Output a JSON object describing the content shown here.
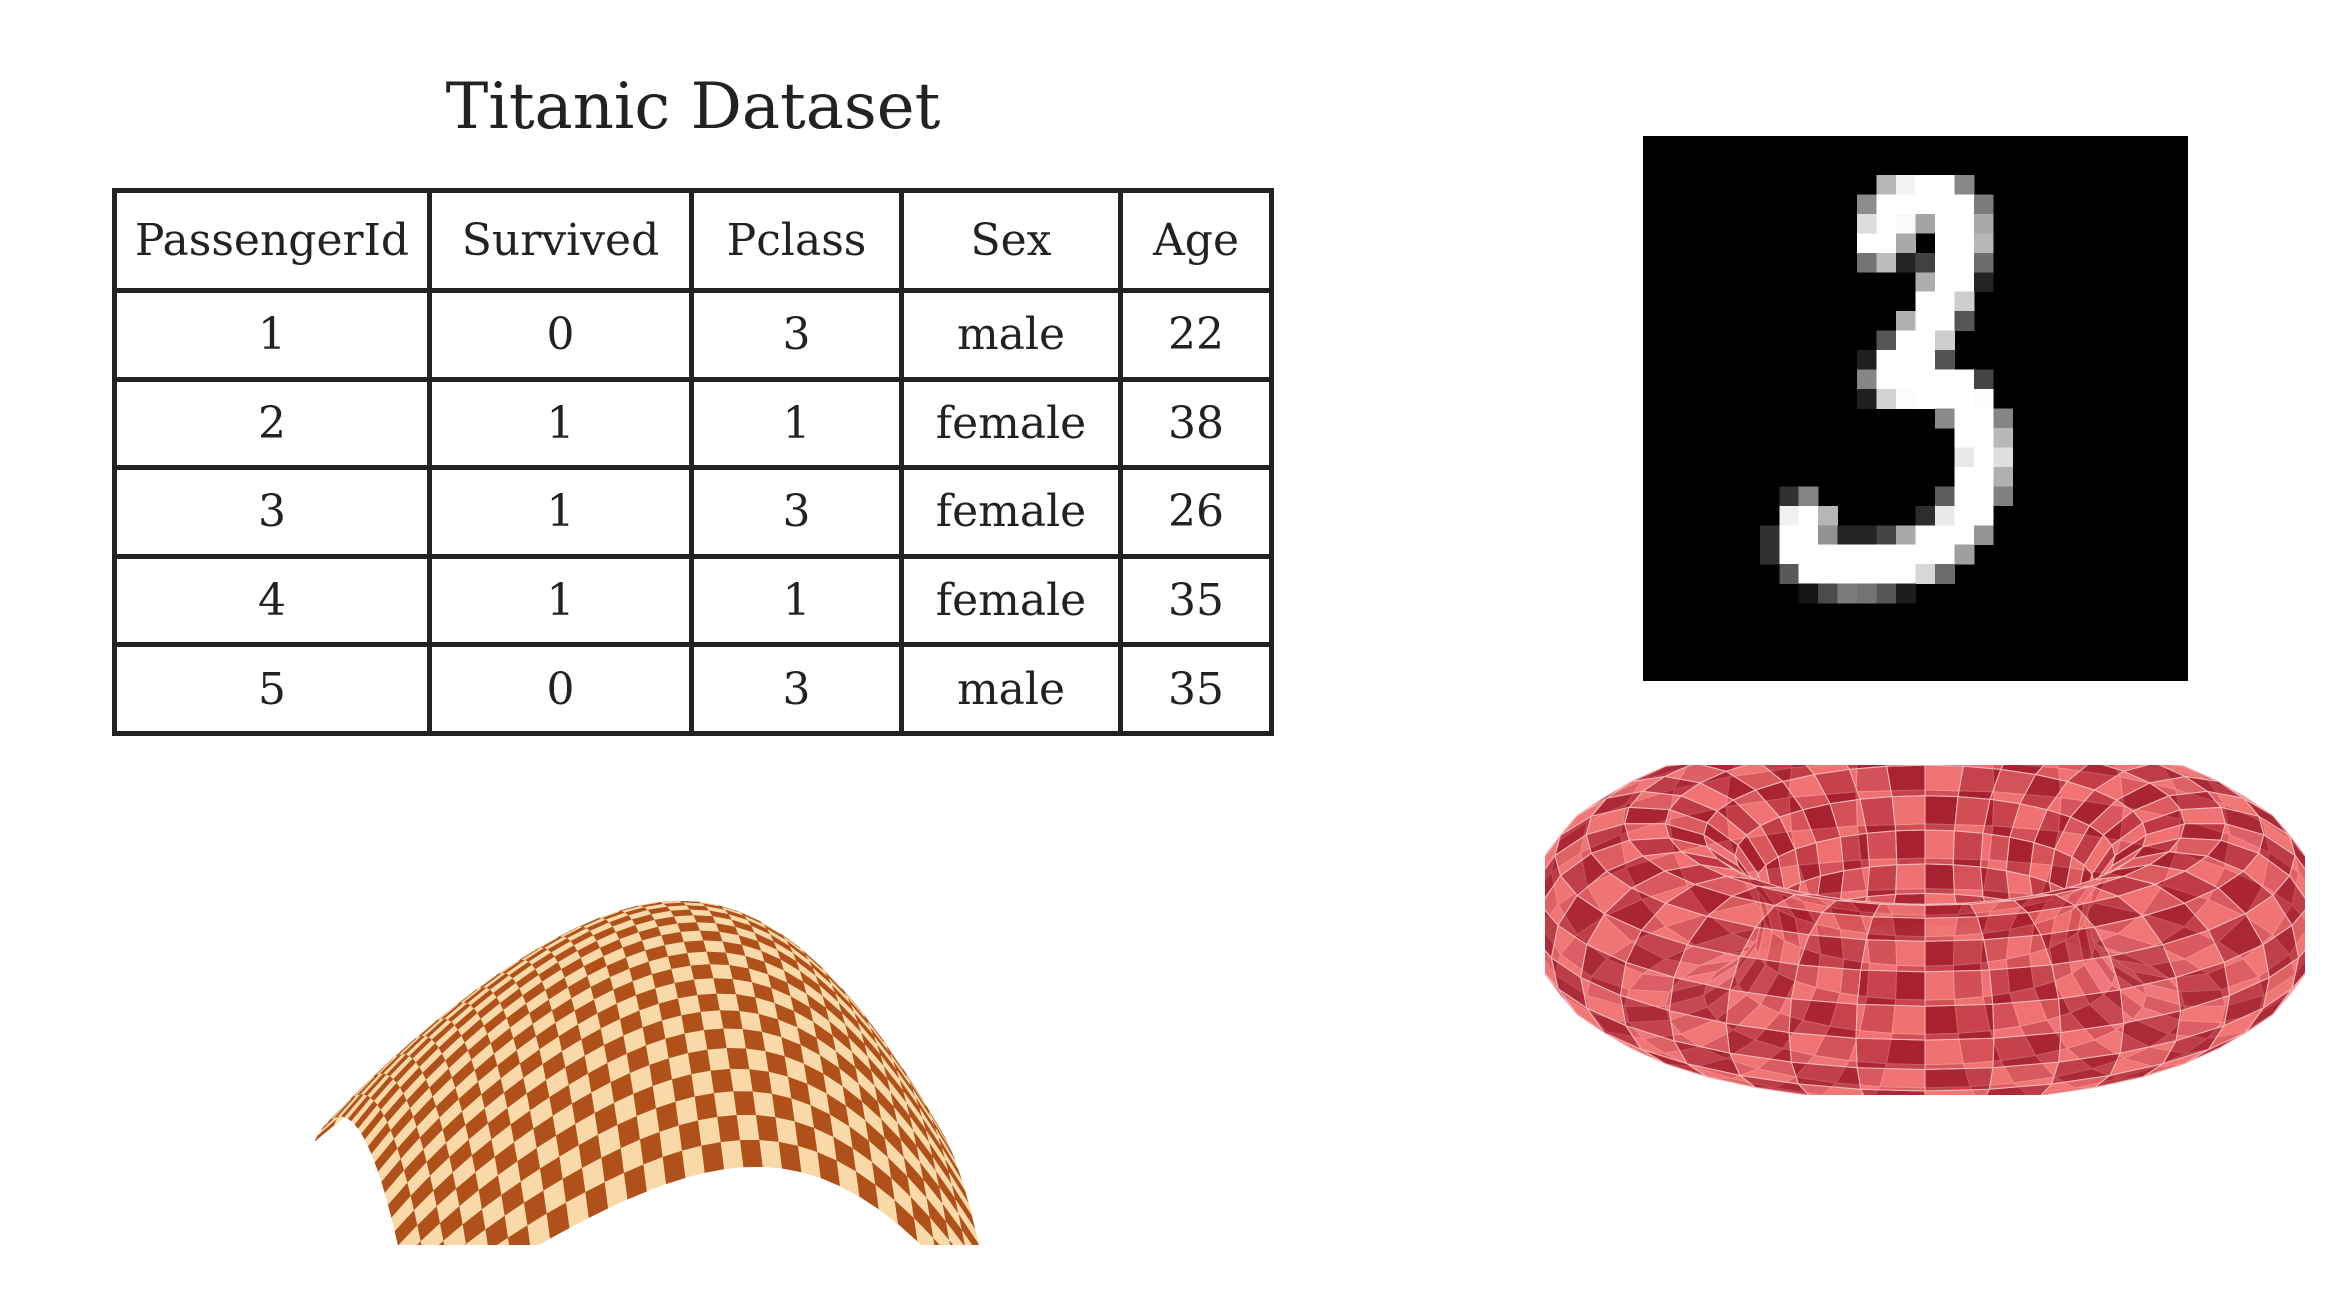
{
  "title": "Titanic Dataset",
  "table": {
    "headers": [
      "PassengerId",
      "Survived",
      "Pclass",
      "Sex",
      "Age"
    ],
    "rows": [
      [
        "1",
        "0",
        "3",
        "male",
        "22"
      ],
      [
        "2",
        "1",
        "1",
        "female",
        "38"
      ],
      [
        "3",
        "1",
        "3",
        "female",
        "26"
      ],
      [
        "4",
        "1",
        "1",
        "female",
        "35"
      ],
      [
        "5",
        "0",
        "3",
        "male",
        "35"
      ]
    ]
  },
  "figures": {
    "mnist": "handwritten digit 3",
    "surface": "checkered saddle surface",
    "torus": "red checkered torus"
  },
  "colors": {
    "text": "#222222",
    "checker_dark": "#b0501a",
    "checker_light": "#f9d9a8",
    "torus_dark": "#a8202e",
    "torus_light": "#f07070"
  }
}
